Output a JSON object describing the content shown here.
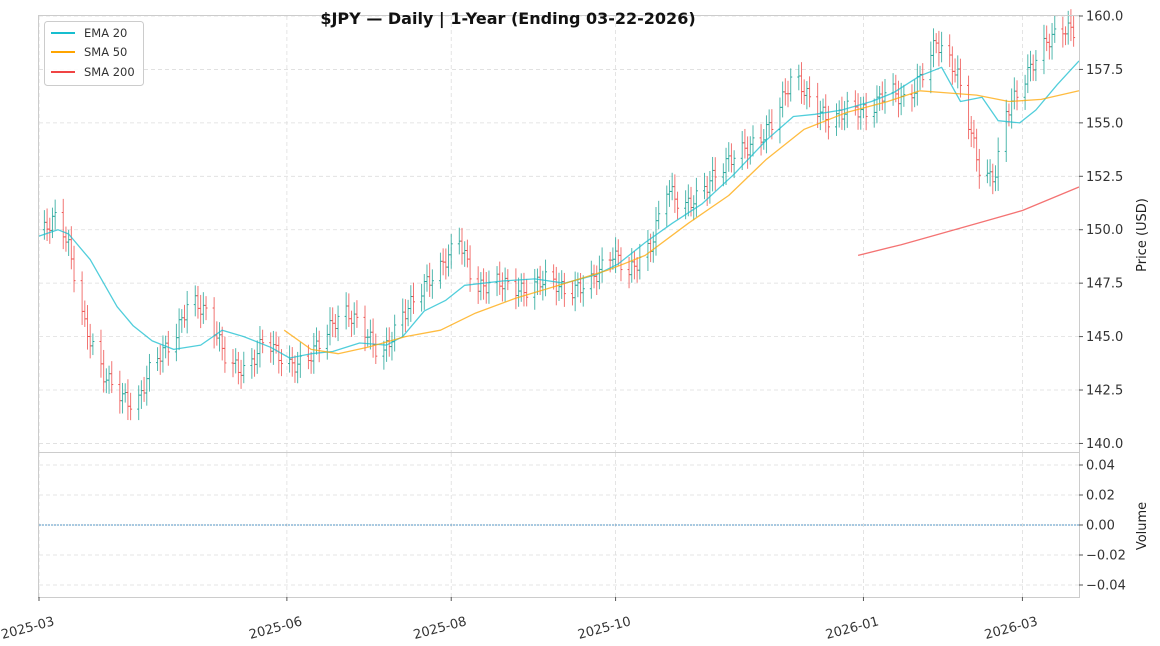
{
  "chart_data": {
    "type": "ohlc",
    "title": "$JPY  —  Daily  |  1-Year (Ending 03-22-2026)",
    "price_axis": {
      "label": "Price (USD)",
      "ylim": [
        139.6,
        160.0
      ],
      "ticks": [
        140.0,
        142.5,
        145.0,
        147.5,
        150.0,
        152.5,
        155.0,
        157.5,
        160.0
      ],
      "tick_labels": [
        "140.0",
        "142.5",
        "145.0",
        "147.5",
        "150.0",
        "152.5",
        "155.0",
        "157.5",
        "160.0"
      ]
    },
    "volume_axis": {
      "label": "Volume",
      "ylim": [
        -0.048,
        0.048
      ],
      "ticks": [
        -0.04,
        -0.02,
        0.0,
        0.02,
        0.04
      ],
      "tick_labels": [
        "−0.04",
        "−0.02",
        "0.00",
        "0.02",
        "0.04"
      ],
      "volume_value": 0.0
    },
    "x_axis": {
      "start": "2025-03-01",
      "end": "2026-03-22",
      "ticks": [
        "2025-03-01",
        "2025-06-01",
        "2025-08-01",
        "2025-10-01",
        "2026-01-01",
        "2026-03-01"
      ],
      "tick_labels": [
        "2025-03",
        "2025-06",
        "2025-08",
        "2025-10",
        "2026-01",
        "2026-03"
      ]
    },
    "legend": {
      "position": "top-left",
      "entries": [
        {
          "label": "EMA 20",
          "color": "#17becf"
        },
        {
          "label": "SMA 50",
          "color": "#ffa500"
        },
        {
          "label": "SMA 200",
          "color": "#f04444"
        }
      ]
    },
    "colors": {
      "up": "#26a69a",
      "down": "#ef5350",
      "ema20": "#17becf",
      "sma50": "#ffa500",
      "sma200": "#f04444",
      "grid": "#dddddd",
      "volume_line": "#1f77b4"
    },
    "anchors": [
      [
        "2025-03-03",
        150.0
      ],
      [
        "2025-03-08",
        150.7
      ],
      [
        "2025-03-12",
        149.2
      ],
      [
        "2025-03-18",
        145.5
      ],
      [
        "2025-03-25",
        143.2
      ],
      [
        "2025-04-01",
        142.2
      ],
      [
        "2025-04-06",
        141.6
      ],
      [
        "2025-04-12",
        143.8
      ],
      [
        "2025-04-20",
        144.8
      ],
      [
        "2025-04-26",
        146.8
      ],
      [
        "2025-05-03",
        146.0
      ],
      [
        "2025-05-10",
        143.8
      ],
      [
        "2025-05-17",
        143.3
      ],
      [
        "2025-05-24",
        145.0
      ],
      [
        "2025-06-01",
        143.6
      ],
      [
        "2025-06-08",
        143.8
      ],
      [
        "2025-06-15",
        145.1
      ],
      [
        "2025-06-22",
        146.2
      ],
      [
        "2025-06-29",
        145.5
      ],
      [
        "2025-07-06",
        144.0
      ],
      [
        "2025-07-14",
        146.0
      ],
      [
        "2025-07-22",
        147.4
      ],
      [
        "2025-07-28",
        148.2
      ],
      [
        "2025-08-04",
        149.6
      ],
      [
        "2025-08-10",
        147.2
      ],
      [
        "2025-08-18",
        147.6
      ],
      [
        "2025-08-28",
        147.1
      ],
      [
        "2025-09-06",
        147.8
      ],
      [
        "2025-09-13",
        147.0
      ],
      [
        "2025-09-22",
        147.6
      ],
      [
        "2025-09-30",
        148.9
      ],
      [
        "2025-10-06",
        148.0
      ],
      [
        "2025-10-14",
        149.2
      ],
      [
        "2025-10-20",
        152.0
      ],
      [
        "2025-10-26",
        151.0
      ],
      [
        "2025-11-01",
        151.6
      ],
      [
        "2025-11-07",
        152.6
      ],
      [
        "2025-11-15",
        153.6
      ],
      [
        "2025-11-23",
        154.1
      ],
      [
        "2025-11-29",
        155.2
      ],
      [
        "2025-12-06",
        157.3
      ],
      [
        "2025-12-13",
        155.9
      ],
      [
        "2025-12-20",
        155.0
      ],
      [
        "2025-12-27",
        155.8
      ],
      [
        "2026-01-03",
        155.4
      ],
      [
        "2026-01-10",
        156.7
      ],
      [
        "2026-01-17",
        155.9
      ],
      [
        "2026-01-24",
        157.6
      ],
      [
        "2026-01-28",
        158.8
      ],
      [
        "2026-02-02",
        157.9
      ],
      [
        "2026-02-05",
        157.2
      ],
      [
        "2026-02-10",
        154.5
      ],
      [
        "2026-02-14",
        152.3
      ],
      [
        "2026-02-19",
        152.6
      ],
      [
        "2026-02-23",
        155.5
      ],
      [
        "2026-02-28",
        156.6
      ],
      [
        "2026-03-05",
        157.8
      ],
      [
        "2026-03-10",
        158.8
      ],
      [
        "2026-03-16",
        159.4
      ],
      [
        "2026-03-22",
        159.3
      ]
    ],
    "ema20": [
      [
        "2025-03-01",
        149.7
      ],
      [
        "2025-03-08",
        150.0
      ],
      [
        "2025-03-12",
        149.8
      ],
      [
        "2025-03-20",
        148.6
      ],
      [
        "2025-03-30",
        146.4
      ],
      [
        "2025-04-05",
        145.5
      ],
      [
        "2025-04-12",
        144.8
      ],
      [
        "2025-04-20",
        144.4
      ],
      [
        "2025-04-30",
        144.6
      ],
      [
        "2025-05-08",
        145.3
      ],
      [
        "2025-05-16",
        145.0
      ],
      [
        "2025-05-26",
        144.5
      ],
      [
        "2025-06-02",
        144.0
      ],
      [
        "2025-06-10",
        144.2
      ],
      [
        "2025-06-18",
        144.3
      ],
      [
        "2025-06-28",
        144.7
      ],
      [
        "2025-07-08",
        144.6
      ],
      [
        "2025-07-14",
        145.0
      ],
      [
        "2025-07-22",
        146.2
      ],
      [
        "2025-07-30",
        146.7
      ],
      [
        "2025-08-06",
        147.4
      ],
      [
        "2025-08-20",
        147.6
      ],
      [
        "2025-09-01",
        147.7
      ],
      [
        "2025-09-12",
        147.5
      ],
      [
        "2025-09-24",
        147.9
      ],
      [
        "2025-10-02",
        148.4
      ],
      [
        "2025-10-12",
        149.4
      ],
      [
        "2025-10-22",
        150.3
      ],
      [
        "2025-11-02",
        151.2
      ],
      [
        "2025-11-14",
        152.6
      ],
      [
        "2025-11-26",
        154.2
      ],
      [
        "2025-12-06",
        155.3
      ],
      [
        "2025-12-14",
        155.4
      ],
      [
        "2025-12-24",
        155.6
      ],
      [
        "2026-01-04",
        156.0
      ],
      [
        "2026-01-12",
        156.4
      ],
      [
        "2026-01-22",
        157.2
      ],
      [
        "2026-01-30",
        157.6
      ],
      [
        "2026-02-06",
        156.0
      ],
      [
        "2026-02-14",
        156.2
      ],
      [
        "2026-02-20",
        155.1
      ],
      [
        "2026-02-28",
        155.0
      ],
      [
        "2026-03-06",
        155.6
      ],
      [
        "2026-03-14",
        156.8
      ],
      [
        "2026-03-22",
        157.9
      ]
    ],
    "sma50": [
      [
        "2025-05-31",
        145.3
      ],
      [
        "2025-06-10",
        144.4
      ],
      [
        "2025-06-20",
        144.2
      ],
      [
        "2025-07-01",
        144.5
      ],
      [
        "2025-07-15",
        145.0
      ],
      [
        "2025-07-28",
        145.3
      ],
      [
        "2025-08-10",
        146.1
      ],
      [
        "2025-08-25",
        146.8
      ],
      [
        "2025-09-10",
        147.4
      ],
      [
        "2025-09-28",
        148.1
      ],
      [
        "2025-10-12",
        148.8
      ],
      [
        "2025-10-28",
        150.3
      ],
      [
        "2025-11-12",
        151.6
      ],
      [
        "2025-11-26",
        153.3
      ],
      [
        "2025-12-10",
        154.7
      ],
      [
        "2025-12-26",
        155.5
      ],
      [
        "2026-01-10",
        156.0
      ],
      [
        "2026-01-22",
        156.5
      ],
      [
        "2026-02-01",
        156.4
      ],
      [
        "2026-02-12",
        156.3
      ],
      [
        "2026-02-24",
        156.0
      ],
      [
        "2026-03-08",
        156.1
      ],
      [
        "2026-03-22",
        156.5
      ]
    ],
    "sma200": [
      [
        "2025-12-30",
        148.8
      ],
      [
        "2026-01-15",
        149.3
      ],
      [
        "2026-02-01",
        149.9
      ],
      [
        "2026-02-15",
        150.4
      ],
      [
        "2026-03-01",
        150.9
      ],
      [
        "2026-03-22",
        152.0
      ]
    ]
  }
}
